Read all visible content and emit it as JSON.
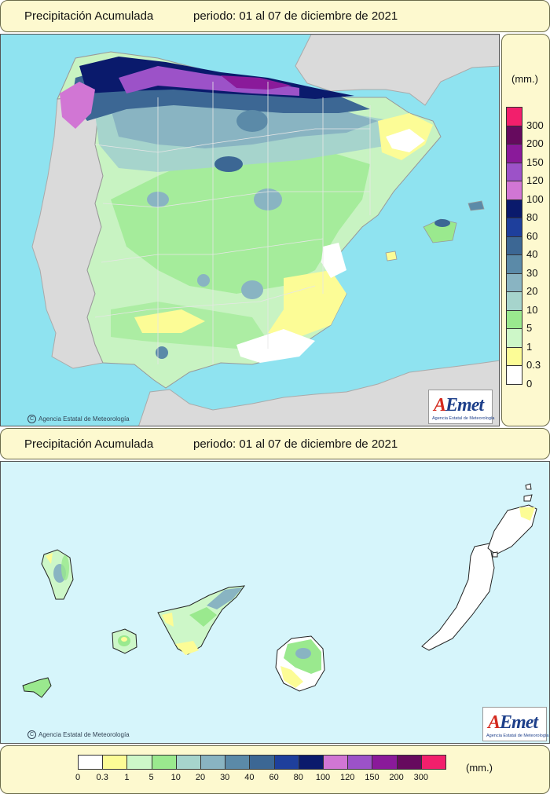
{
  "top_title": {
    "label": "Precipitación Acumulada",
    "period": "periodo: 01 al 07 de diciembre de 2021"
  },
  "bottom_title": {
    "label": "Precipitación Acumulada",
    "period": "periodo: 01 al 07 de diciembre de 2021"
  },
  "credit": "Agencia Estatal de Meteorología",
  "copyright_symbol": "C",
  "logo": {
    "word_a": "A",
    "word_rest": "Emet",
    "subtitle": "Agencia Estatal de Meteorología"
  },
  "legend_unit": "(mm.)",
  "legend": [
    {
      "value": "0",
      "color": "#ffffff"
    },
    {
      "value": "0.3",
      "color": "#fcfc96"
    },
    {
      "value": "1",
      "color": "#cdf7c8"
    },
    {
      "value": "5",
      "color": "#9ae98e"
    },
    {
      "value": "10",
      "color": "#a6d4cc"
    },
    {
      "value": "20",
      "color": "#89b4c2"
    },
    {
      "value": "30",
      "color": "#5b8aa8"
    },
    {
      "value": "40",
      "color": "#3c6794"
    },
    {
      "value": "60",
      "color": "#1e3f9c"
    },
    {
      "value": "80",
      "color": "#0a1a6c"
    },
    {
      "value": "100",
      "color": "#d176d4"
    },
    {
      "value": "120",
      "color": "#9c52c8"
    },
    {
      "value": "150",
      "color": "#8a1a9a"
    },
    {
      "value": "200",
      "color": "#660a5e"
    },
    {
      "value": "300",
      "color": "#f21f6c"
    }
  ],
  "colors": {
    "sea": "#8fe3f0",
    "land_other": "#dadada",
    "panel": "#fdf9cf",
    "sea_canarias": "#d6f5fb"
  }
}
